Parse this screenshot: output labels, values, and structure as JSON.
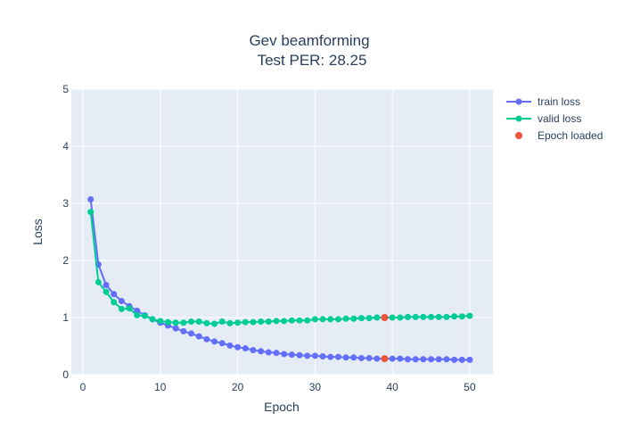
{
  "chart_data": {
    "type": "line",
    "title": "Gev beamforming",
    "subtitle": "Test PER: 28.25",
    "xlabel": "Epoch",
    "ylabel": "Loss",
    "xlim": [
      -1.5,
      53
    ],
    "ylim": [
      0,
      5
    ],
    "xticks": [
      0,
      10,
      20,
      30,
      40,
      50
    ],
    "yticks": [
      0,
      1,
      2,
      3,
      4,
      5
    ],
    "grid": true,
    "legend_position": "top-right",
    "x": [
      1,
      2,
      3,
      4,
      5,
      6,
      7,
      8,
      9,
      10,
      11,
      12,
      13,
      14,
      15,
      16,
      17,
      18,
      19,
      20,
      21,
      22,
      23,
      24,
      25,
      26,
      27,
      28,
      29,
      30,
      31,
      32,
      33,
      34,
      35,
      36,
      37,
      38,
      39,
      40,
      41,
      42,
      43,
      44,
      45,
      46,
      47,
      48,
      49,
      50
    ],
    "series": [
      {
        "name": "train loss",
        "color": "#636efa",
        "mode": "lines+markers",
        "values": [
          3.07,
          1.93,
          1.57,
          1.41,
          1.29,
          1.2,
          1.12,
          1.04,
          0.97,
          0.91,
          0.86,
          0.81,
          0.76,
          0.72,
          0.67,
          0.62,
          0.58,
          0.55,
          0.51,
          0.48,
          0.46,
          0.43,
          0.41,
          0.39,
          0.38,
          0.36,
          0.35,
          0.34,
          0.33,
          0.33,
          0.32,
          0.31,
          0.31,
          0.3,
          0.3,
          0.29,
          0.29,
          0.28,
          0.28,
          0.28,
          0.28,
          0.27,
          0.27,
          0.27,
          0.27,
          0.27,
          0.27,
          0.26,
          0.26,
          0.26
        ]
      },
      {
        "name": "valid loss",
        "color": "#00cc96",
        "mode": "lines+markers",
        "values": [
          2.85,
          1.62,
          1.45,
          1.27,
          1.15,
          1.16,
          1.04,
          1.03,
          0.97,
          0.94,
          0.92,
          0.91,
          0.91,
          0.93,
          0.93,
          0.9,
          0.89,
          0.93,
          0.9,
          0.91,
          0.92,
          0.92,
          0.93,
          0.93,
          0.94,
          0.94,
          0.95,
          0.95,
          0.95,
          0.97,
          0.97,
          0.97,
          0.97,
          0.98,
          0.98,
          0.99,
          0.99,
          1.0,
          1.0,
          1.0,
          1.0,
          1.01,
          1.01,
          1.01,
          1.01,
          1.01,
          1.01,
          1.02,
          1.02,
          1.03
        ]
      },
      {
        "name": "Epoch loaded",
        "color": "#ef553b",
        "mode": "markers",
        "x": [
          39,
          39
        ],
        "values": [
          1.0,
          0.28
        ]
      }
    ]
  }
}
